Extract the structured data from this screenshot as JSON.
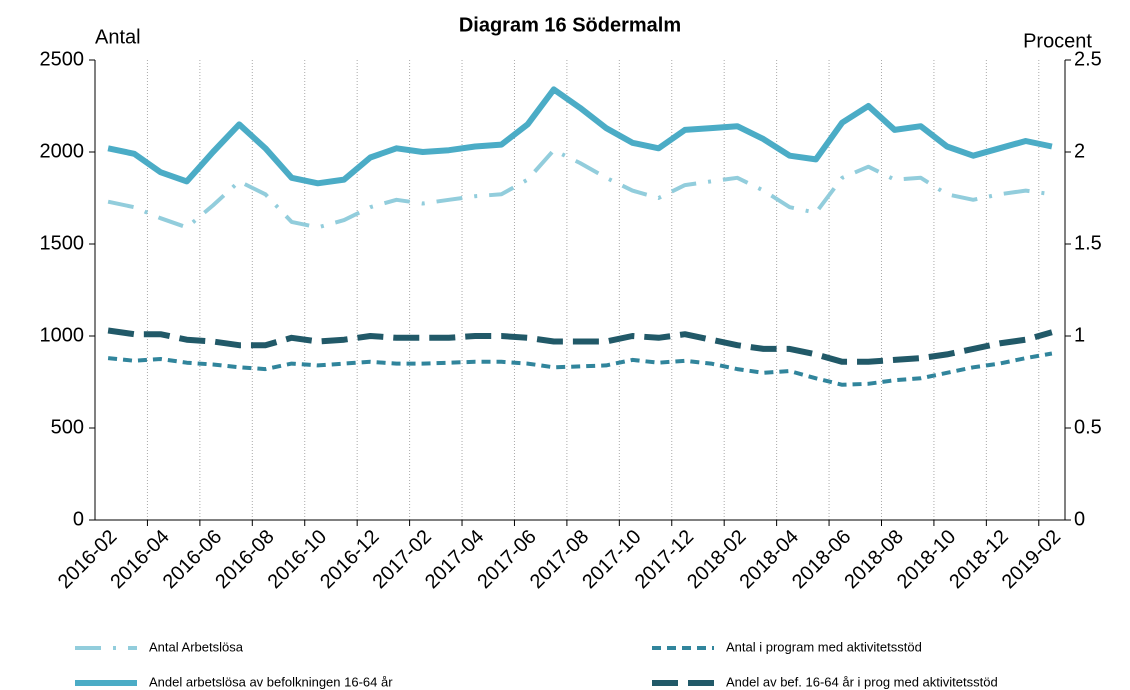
{
  "chart_data": {
    "type": "line",
    "title": "Diagram 16 Södermalm",
    "y_label": "Antal",
    "y2_label": "Procent",
    "categories": [
      "2016-02",
      null,
      "2016-04",
      null,
      "2016-06",
      null,
      "2016-08",
      null,
      "2016-10",
      null,
      "2016-12",
      null,
      "2017-02",
      null,
      "2017-04",
      null,
      "2017-06",
      null,
      "2017-08",
      null,
      "2017-10",
      null,
      "2017-12",
      null,
      "2018-02",
      null,
      "2018-04",
      null,
      "2018-06",
      null,
      "2018-08",
      null,
      "2018-10",
      null,
      "2018-12",
      null,
      "2019-02"
    ],
    "ylim": [
      0,
      2500
    ],
    "yticks": [
      0,
      500,
      1000,
      1500,
      2000,
      2500
    ],
    "y2lim": [
      0,
      2.5
    ],
    "y2ticks": [
      0,
      0.5,
      1,
      1.5,
      2,
      2.5
    ],
    "grid": true,
    "legend": "bottom",
    "series": [
      {
        "name": "Antal Arbetslösa",
        "color": "#92cddc",
        "dash": "dashdot",
        "values": [
          1730,
          1700,
          1640,
          1590,
          1710,
          1840,
          1770,
          1620,
          1590,
          1630,
          1700,
          1740,
          1720,
          1740,
          1760,
          1770,
          1850,
          2010,
          1940,
          1860,
          1790,
          1750,
          1820,
          1840,
          1860,
          1790,
          1700,
          1670,
          1860,
          1920,
          1850,
          1860,
          1770,
          1740,
          1770,
          1790,
          1770
        ]
      },
      {
        "name": "Antal i program med aktivitetsstöd",
        "color": "#31859c",
        "dash": "dash",
        "values": [
          880,
          865,
          875,
          855,
          845,
          830,
          820,
          850,
          840,
          850,
          860,
          850,
          850,
          855,
          860,
          860,
          850,
          830,
          835,
          840,
          870,
          855,
          865,
          850,
          820,
          800,
          810,
          770,
          735,
          740,
          760,
          770,
          800,
          830,
          850,
          880,
          905
        ]
      },
      {
        "name": "Andel arbetslösa av befolkningen 16-64 år",
        "color": "#4bacc6",
        "dash": "solid",
        "axis": "y2",
        "values": [
          2.02,
          1.99,
          1.89,
          1.84,
          2.0,
          2.15,
          2.02,
          1.86,
          1.83,
          1.85,
          1.97,
          2.02,
          2.0,
          2.01,
          2.03,
          2.04,
          2.15,
          2.34,
          2.24,
          2.13,
          2.05,
          2.02,
          2.12,
          2.13,
          2.14,
          2.07,
          1.98,
          1.96,
          2.16,
          2.25,
          2.12,
          2.14,
          2.03,
          1.98,
          2.02,
          2.06,
          2.03
        ]
      },
      {
        "name": "Andel av bef. 16-64 år i prog med aktivitetsstöd",
        "color": "#215968",
        "dash": "longdash",
        "axis": "y2",
        "values": [
          1.03,
          1.01,
          1.01,
          0.98,
          0.97,
          0.95,
          0.95,
          0.99,
          0.97,
          0.98,
          1.0,
          0.99,
          0.99,
          0.99,
          1.0,
          1.0,
          0.99,
          0.97,
          0.97,
          0.97,
          1.0,
          0.99,
          1.01,
          0.98,
          0.95,
          0.93,
          0.93,
          0.9,
          0.86,
          0.86,
          0.87,
          0.88,
          0.9,
          0.93,
          0.96,
          0.98,
          1.02
        ]
      }
    ]
  }
}
